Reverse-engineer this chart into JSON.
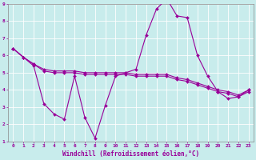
{
  "xlabel": "Windchill (Refroidissement éolien,°C)",
  "bg_color": "#c8ecec",
  "line_color": "#990099",
  "grid_color": "#ffffff",
  "spine_color": "#888888",
  "xlim": [
    -0.5,
    23.5
  ],
  "ylim": [
    1,
    9
  ],
  "xticks": [
    0,
    1,
    2,
    3,
    4,
    5,
    6,
    7,
    8,
    9,
    10,
    11,
    12,
    13,
    14,
    15,
    16,
    17,
    18,
    19,
    20,
    21,
    22,
    23
  ],
  "yticks": [
    1,
    2,
    3,
    4,
    5,
    6,
    7,
    8,
    9
  ],
  "series": [
    {
      "x": [
        0,
        1,
        2,
        3,
        4,
        5,
        6,
        7,
        8,
        9,
        10,
        11,
        12,
        13,
        14,
        15,
        16,
        17,
        18,
        19,
        20,
        21,
        22,
        23
      ],
      "y": [
        6.4,
        5.9,
        5.5,
        5.1,
        5.0,
        5.0,
        5.0,
        4.9,
        4.9,
        4.9,
        4.9,
        4.9,
        4.8,
        4.8,
        4.8,
        4.8,
        4.6,
        4.5,
        4.3,
        4.1,
        3.9,
        3.8,
        3.6,
        3.9
      ]
    },
    {
      "x": [
        0,
        1,
        2,
        3,
        4,
        5,
        6,
        7,
        8,
        9,
        10,
        11,
        12,
        13,
        14,
        15,
        16,
        17,
        18,
        19,
        20,
        21,
        22,
        23
      ],
      "y": [
        6.4,
        5.9,
        5.5,
        5.2,
        5.1,
        5.1,
        5.1,
        5.0,
        5.0,
        5.0,
        5.0,
        5.0,
        4.9,
        4.9,
        4.9,
        4.9,
        4.7,
        4.6,
        4.4,
        4.2,
        4.0,
        3.9,
        3.7,
        4.0
      ]
    },
    {
      "x": [
        0,
        1,
        2,
        3,
        4,
        5,
        6,
        7,
        8,
        9,
        10,
        11,
        12,
        13,
        14,
        15,
        16,
        17,
        18,
        19,
        20,
        21,
        22,
        23
      ],
      "y": [
        6.4,
        5.9,
        5.4,
        3.2,
        2.6,
        2.3,
        4.8,
        2.4,
        1.2,
        3.1,
        4.8,
        5.0,
        5.2,
        7.2,
        8.7,
        9.3,
        8.3,
        8.2,
        6.0,
        4.8,
        3.9,
        3.5,
        3.6,
        4.0
      ]
    }
  ]
}
